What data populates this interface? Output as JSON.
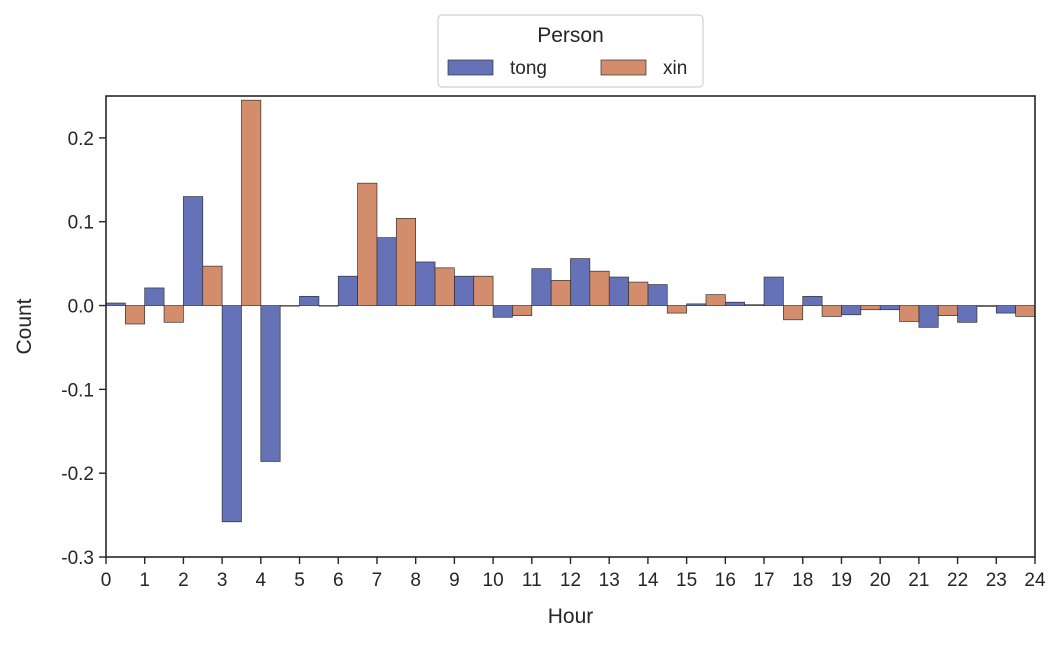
{
  "chart_data": {
    "type": "bar",
    "xlabel": "Hour",
    "ylabel": "Count",
    "ylim": [
      -0.3,
      0.25
    ],
    "xlim": [
      0,
      24
    ],
    "yticks": [
      -0.3,
      -0.2,
      -0.1,
      0.0,
      0.1,
      0.2
    ],
    "ytick_labels": [
      "-0.3",
      "-0.2",
      "-0.1",
      "0.0",
      "0.1",
      "0.2"
    ],
    "xticks": [
      0,
      1,
      2,
      3,
      4,
      5,
      6,
      7,
      8,
      9,
      10,
      11,
      12,
      13,
      14,
      15,
      16,
      17,
      18,
      19,
      20,
      21,
      22,
      23,
      24
    ],
    "xtick_labels": [
      "0",
      "1",
      "2",
      "3",
      "4",
      "5",
      "6",
      "7",
      "8",
      "9",
      "10",
      "11",
      "12",
      "13",
      "14",
      "15",
      "16",
      "17",
      "18",
      "19",
      "20",
      "21",
      "22",
      "23",
      "24"
    ],
    "grid": false,
    "legend": {
      "title": "Person",
      "placement": "top-center",
      "columns": 2
    },
    "categories": [
      0,
      1,
      2,
      3,
      4,
      5,
      6,
      7,
      8,
      9,
      10,
      11,
      12,
      13,
      14,
      15,
      16,
      17,
      18,
      19,
      20,
      21,
      22,
      23
    ],
    "series": [
      {
        "name": "tong",
        "color": "#6572b8",
        "values": [
          0.003,
          0.021,
          0.13,
          -0.258,
          -0.186,
          0.011,
          0.035,
          0.081,
          0.052,
          0.035,
          -0.014,
          0.044,
          0.056,
          0.034,
          0.025,
          0.002,
          0.004,
          0.034,
          0.011,
          -0.011,
          -0.005,
          -0.026,
          -0.02,
          -0.009
        ]
      },
      {
        "name": "xin",
        "color": "#d38c6c",
        "values": [
          -0.022,
          -0.02,
          0.047,
          0.245,
          0.0,
          0.0,
          0.146,
          0.104,
          0.045,
          0.035,
          -0.012,
          0.03,
          0.041,
          0.028,
          -0.009,
          0.013,
          0.001,
          -0.017,
          -0.013,
          -0.005,
          -0.019,
          -0.012,
          -0.001,
          -0.013
        ]
      }
    ]
  }
}
